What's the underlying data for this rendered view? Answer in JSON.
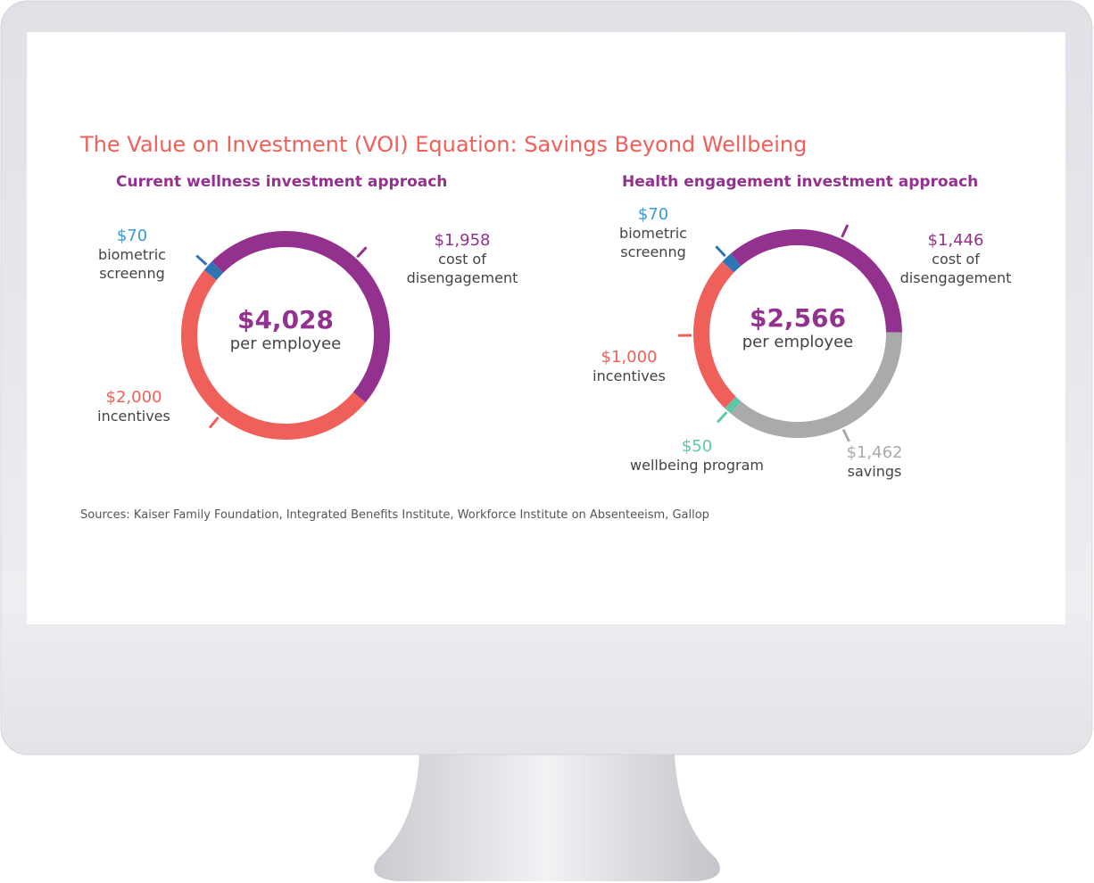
{
  "title": "The Value on Investment (VOI) Equation: Savings Beyond Wellbeing",
  "source": "Sources: Kaiser Family Foundation, Integrated Benefits Institute, Workforce Institute on Absenteeism, Gallop",
  "chart_data": [
    {
      "type": "donut",
      "title": "Current wellness investment approach",
      "total": 4028,
      "total_label": "$4,028",
      "total_caption": "per employee",
      "categories": [
        "cost of disengagement",
        "incentives",
        "biometric screenng"
      ],
      "values": [
        1958,
        2000,
        70
      ],
      "value_labels": [
        "$1,958",
        "$2,000",
        "$70"
      ],
      "colors": [
        "#93318e",
        "#f0605a",
        "#2e75b6"
      ]
    },
    {
      "type": "donut",
      "title": "Health engagement investment approach",
      "total": 2566,
      "total_label": "$2,566",
      "total_caption": "per employee",
      "categories": [
        "cost of disengagement",
        "savings",
        "wellbeing program",
        "incentives",
        "biometric screenng"
      ],
      "values": [
        1446,
        1462,
        50,
        1000,
        70
      ],
      "value_labels": [
        "$1,446",
        "$1,462",
        "$50",
        "$1,000",
        "$70"
      ],
      "colors": [
        "#93318e",
        "#aaaaaa",
        "#5cc8a8",
        "#f0605a",
        "#2e75b6"
      ]
    }
  ]
}
